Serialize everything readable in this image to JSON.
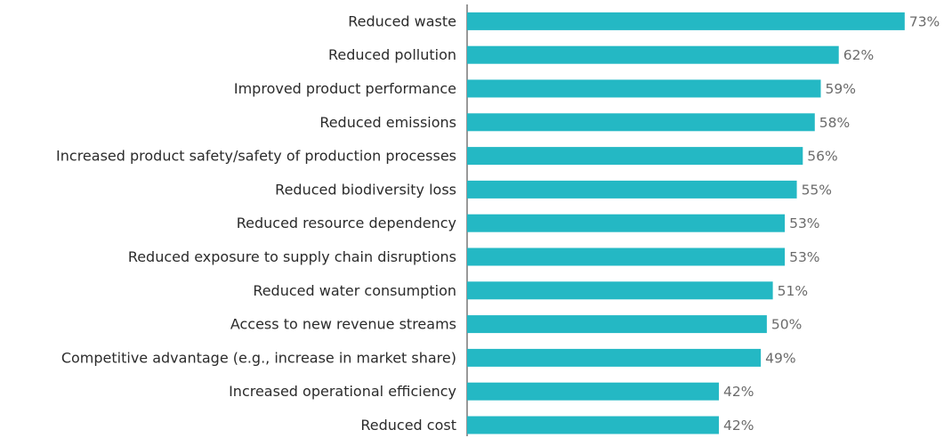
{
  "chart_data": {
    "type": "bar",
    "orientation": "horizontal",
    "categories": [
      "Reduced waste",
      "Reduced pollution",
      "Improved product performance",
      "Reduced emissions",
      "Increased product safety/safety of production processes",
      "Reduced biodiversity loss",
      "Reduced resource dependency",
      "Reduced exposure to supply chain disruptions",
      "Reduced water consumption",
      "Access to new revenue streams",
      "Competitive advantage (e.g., increase in market share)",
      "Increased operational efficiency",
      "Reduced cost"
    ],
    "values": [
      73,
      62,
      59,
      58,
      56,
      55,
      53,
      53,
      51,
      50,
      49,
      42,
      42
    ],
    "value_labels": [
      "73%",
      "62%",
      "59%",
      "58%",
      "56%",
      "55%",
      "53%",
      "53%",
      "51%",
      "50%",
      "49%",
      "42%",
      "42%"
    ],
    "color": "#24b8c4",
    "xlim": [
      0,
      80
    ]
  }
}
